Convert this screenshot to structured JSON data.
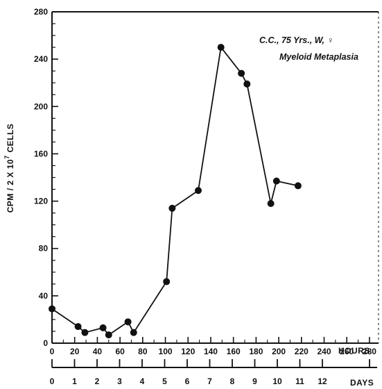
{
  "chart_data": {
    "type": "line",
    "ylabel": "CPM / 2 X 10",
    "ylabel_superscript": "7",
    "ylabel_tail": " CELLS",
    "xlabel_hours": "HOURS",
    "xlabel_days": "DAYS",
    "ylim": [
      0,
      280
    ],
    "xlim_hours": [
      0,
      288
    ],
    "y_ticks": [
      0,
      40,
      80,
      120,
      160,
      200,
      240,
      280
    ],
    "y_tick_labels": [
      "0",
      "40",
      "80",
      "120",
      "160",
      "200",
      "240",
      "280"
    ],
    "hour_ticks": [
      0,
      20,
      40,
      60,
      80,
      100,
      120,
      140,
      160,
      180,
      200,
      220,
      240,
      260,
      280
    ],
    "hour_tick_labels": [
      "0",
      "20",
      "40",
      "60",
      "80",
      "100",
      "120",
      "140",
      "160",
      "180",
      "200",
      "220",
      "240",
      "260",
      "280"
    ],
    "day_ticks": [
      0,
      1,
      2,
      3,
      4,
      5,
      6,
      7,
      8,
      9,
      10,
      11,
      12
    ],
    "day_tick_labels": [
      "0",
      "1",
      "2",
      "3",
      "4",
      "5",
      "6",
      "7",
      "8",
      "9",
      "10",
      "11",
      "12"
    ],
    "grid": false,
    "annotation_line1": "C.C., 75 Yrs., W, ♀",
    "annotation_line2": "Myeloid Metaplasia",
    "series": [
      {
        "x": [
          0,
          23,
          29,
          45,
          50,
          67,
          72,
          101,
          106,
          129,
          149,
          167,
          172,
          193,
          198,
          217
        ],
        "y": [
          29,
          14,
          9,
          13,
          7,
          18,
          9,
          52,
          114,
          129,
          250,
          228,
          219,
          118,
          137,
          133
        ]
      }
    ]
  }
}
